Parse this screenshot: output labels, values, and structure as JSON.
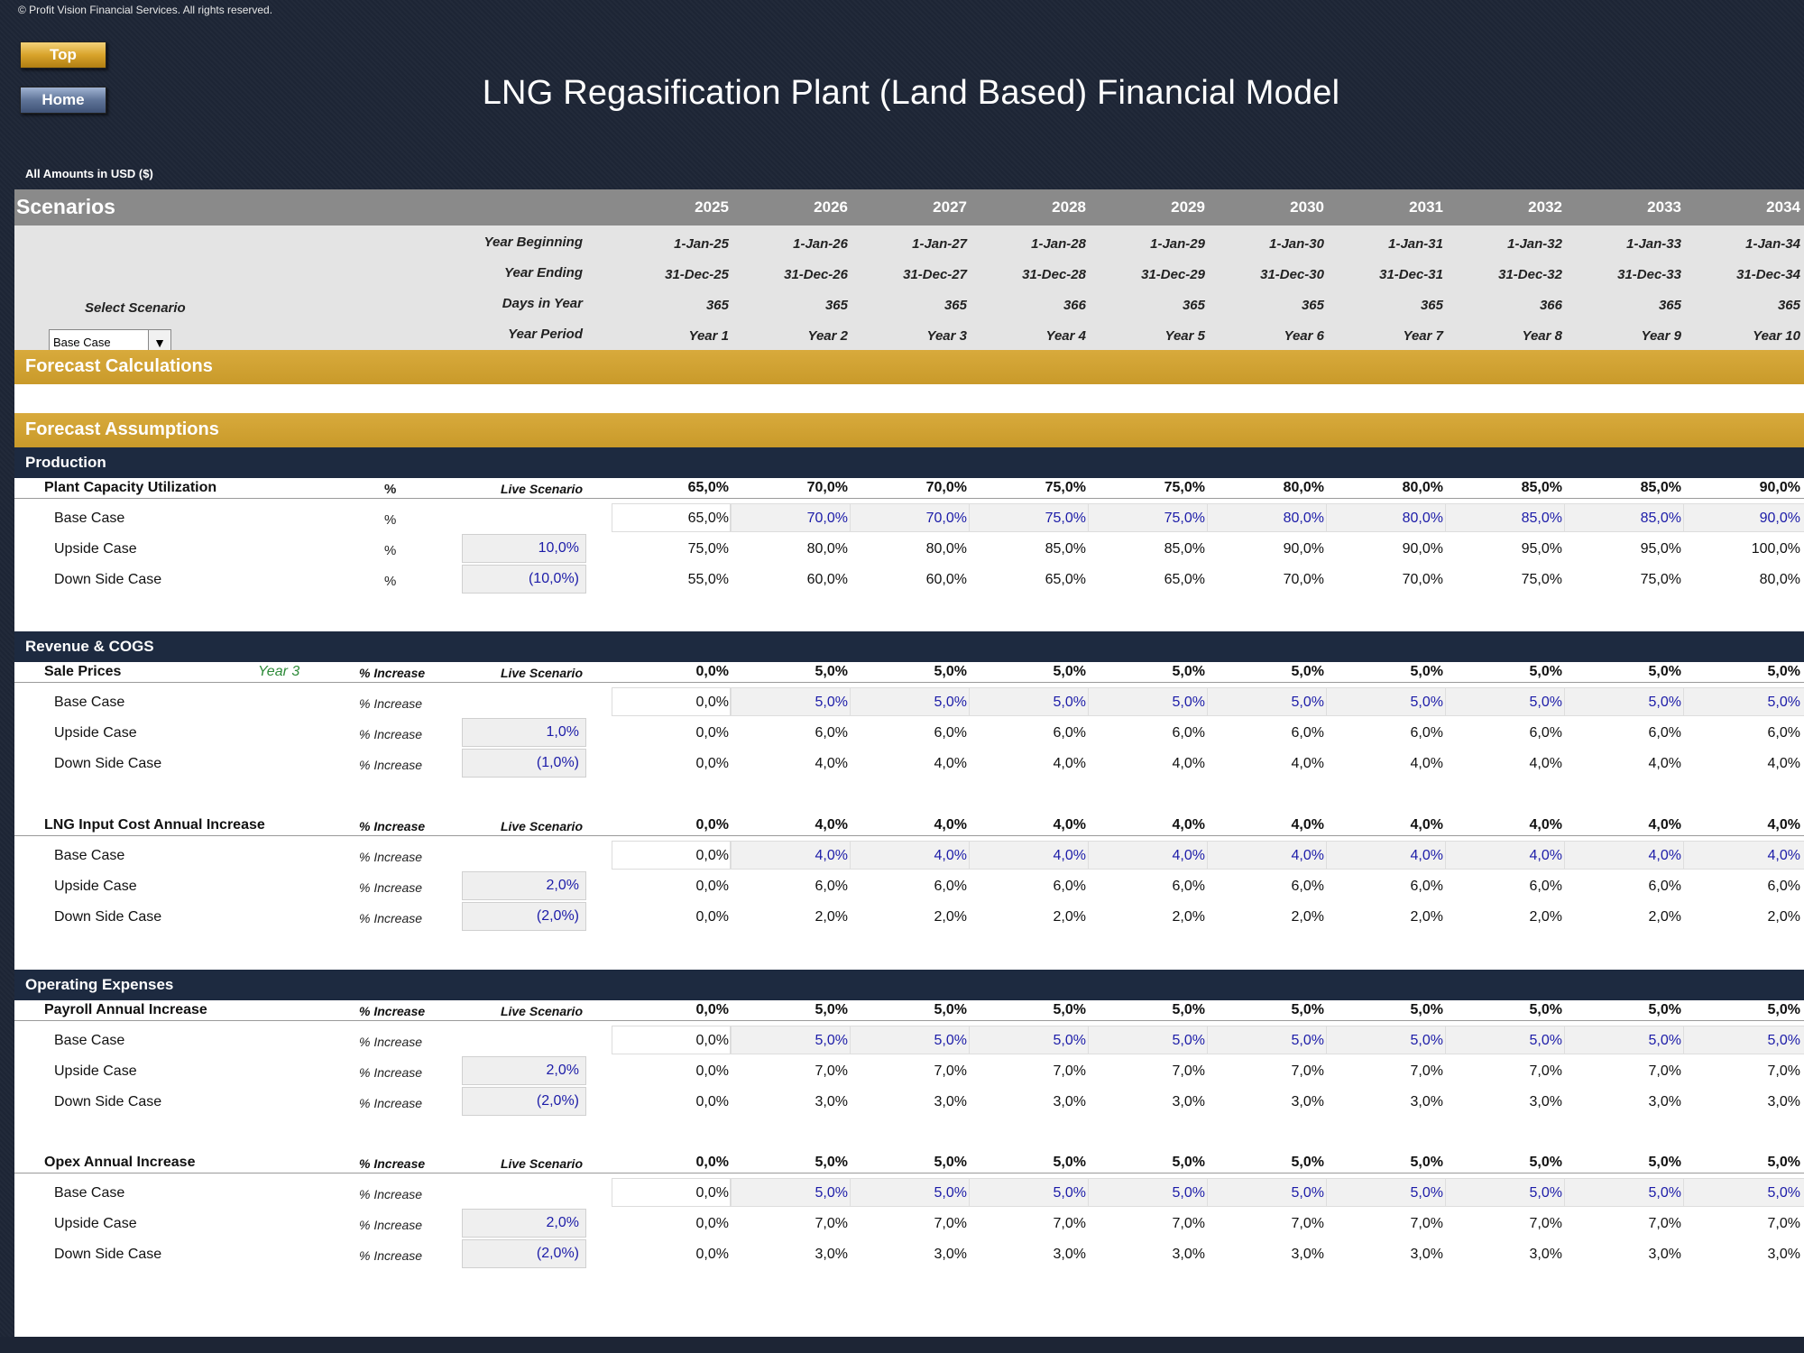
{
  "copyright": "© Profit Vision Financial Services. All rights reserved.",
  "buttons": {
    "top": "Top",
    "home": "Home"
  },
  "title": "LNG Regasification Plant (Land Based) Financial Model",
  "amounts": "All Amounts in  USD ($)",
  "scenarios": {
    "title": "Scenarios",
    "years": [
      "2025",
      "2026",
      "2027",
      "2028",
      "2029",
      "2030",
      "2031",
      "2032",
      "2033",
      "2034"
    ],
    "labels": {
      "beginning": "Year Beginning",
      "ending": "Year Ending",
      "days": "Days in Year",
      "period": "Year Period"
    },
    "beginning": [
      "1-Jan-25",
      "1-Jan-26",
      "1-Jan-27",
      "1-Jan-28",
      "1-Jan-29",
      "1-Jan-30",
      "1-Jan-31",
      "1-Jan-32",
      "1-Jan-33",
      "1-Jan-34"
    ],
    "ending": [
      "31-Dec-25",
      "31-Dec-26",
      "31-Dec-27",
      "31-Dec-28",
      "31-Dec-29",
      "31-Dec-30",
      "31-Dec-31",
      "31-Dec-32",
      "31-Dec-33",
      "31-Dec-34"
    ],
    "days": [
      "365",
      "365",
      "365",
      "366",
      "365",
      "365",
      "365",
      "366",
      "365",
      "365"
    ],
    "period": [
      "Year 1",
      "Year 2",
      "Year 3",
      "Year 4",
      "Year 5",
      "Year 6",
      "Year 7",
      "Year 8",
      "Year 9",
      "Year 10"
    ],
    "select_label": "Select Scenario",
    "selected": "Base Case",
    "dropdown_arrow": "▼"
  },
  "bands": {
    "forecast_calc": "Forecast Calculations",
    "forecast_assump": "Forecast Assumptions",
    "production": "Production",
    "revenue": "Revenue & COGS",
    "opex": "Operating Expenses"
  },
  "live_label": "Live Scenario",
  "case_names": [
    "Base Case",
    "Upside Case",
    "Down Side Case"
  ],
  "blocks": [
    {
      "name": "Plant Capacity Utilization",
      "unit": "%",
      "unit_sub": "%",
      "tag": "",
      "live": [
        "65,0%",
        "70,0%",
        "70,0%",
        "75,0%",
        "75,0%",
        "80,0%",
        "80,0%",
        "85,0%",
        "85,0%",
        "90,0%"
      ],
      "base": [
        "65,0%",
        "70,0%",
        "70,0%",
        "75,0%",
        "75,0%",
        "80,0%",
        "80,0%",
        "85,0%",
        "85,0%",
        "90,0%"
      ],
      "up_input": "10,0%",
      "up": [
        "75,0%",
        "80,0%",
        "80,0%",
        "85,0%",
        "85,0%",
        "90,0%",
        "90,0%",
        "95,0%",
        "95,0%",
        "100,0%"
      ],
      "down_input": "(10,0%)",
      "down": [
        "55,0%",
        "60,0%",
        "60,0%",
        "65,0%",
        "65,0%",
        "70,0%",
        "70,0%",
        "75,0%",
        "75,0%",
        "80,0%"
      ]
    },
    {
      "name": "Sale Prices",
      "unit": "% Increase",
      "unit_sub": "% Increase",
      "tag": "Year 3",
      "live": [
        "0,0%",
        "5,0%",
        "5,0%",
        "5,0%",
        "5,0%",
        "5,0%",
        "5,0%",
        "5,0%",
        "5,0%",
        "5,0%"
      ],
      "base": [
        "0,0%",
        "5,0%",
        "5,0%",
        "5,0%",
        "5,0%",
        "5,0%",
        "5,0%",
        "5,0%",
        "5,0%",
        "5,0%"
      ],
      "up_input": "1,0%",
      "up": [
        "0,0%",
        "6,0%",
        "6,0%",
        "6,0%",
        "6,0%",
        "6,0%",
        "6,0%",
        "6,0%",
        "6,0%",
        "6,0%"
      ],
      "down_input": "(1,0%)",
      "down": [
        "0,0%",
        "4,0%",
        "4,0%",
        "4,0%",
        "4,0%",
        "4,0%",
        "4,0%",
        "4,0%",
        "4,0%",
        "4,0%"
      ]
    },
    {
      "name": "LNG Input Cost Annual Increase",
      "unit": "% Increase",
      "unit_sub": "% Increase",
      "tag": "",
      "live": [
        "0,0%",
        "4,0%",
        "4,0%",
        "4,0%",
        "4,0%",
        "4,0%",
        "4,0%",
        "4,0%",
        "4,0%",
        "4,0%"
      ],
      "base": [
        "0,0%",
        "4,0%",
        "4,0%",
        "4,0%",
        "4,0%",
        "4,0%",
        "4,0%",
        "4,0%",
        "4,0%",
        "4,0%"
      ],
      "up_input": "2,0%",
      "up": [
        "0,0%",
        "6,0%",
        "6,0%",
        "6,0%",
        "6,0%",
        "6,0%",
        "6,0%",
        "6,0%",
        "6,0%",
        "6,0%"
      ],
      "down_input": "(2,0%)",
      "down": [
        "0,0%",
        "2,0%",
        "2,0%",
        "2,0%",
        "2,0%",
        "2,0%",
        "2,0%",
        "2,0%",
        "2,0%",
        "2,0%"
      ]
    },
    {
      "name": "Payroll Annual Increase",
      "unit": "% Increase",
      "unit_sub": "% Increase",
      "tag": "",
      "live": [
        "0,0%",
        "5,0%",
        "5,0%",
        "5,0%",
        "5,0%",
        "5,0%",
        "5,0%",
        "5,0%",
        "5,0%",
        "5,0%"
      ],
      "base": [
        "0,0%",
        "5,0%",
        "5,0%",
        "5,0%",
        "5,0%",
        "5,0%",
        "5,0%",
        "5,0%",
        "5,0%",
        "5,0%"
      ],
      "up_input": "2,0%",
      "up": [
        "0,0%",
        "7,0%",
        "7,0%",
        "7,0%",
        "7,0%",
        "7,0%",
        "7,0%",
        "7,0%",
        "7,0%",
        "7,0%"
      ],
      "down_input": "(2,0%)",
      "down": [
        "0,0%",
        "3,0%",
        "3,0%",
        "3,0%",
        "3,0%",
        "3,0%",
        "3,0%",
        "3,0%",
        "3,0%",
        "3,0%"
      ]
    },
    {
      "name": "Opex Annual Increase",
      "unit": "% Increase",
      "unit_sub": "% Increase",
      "tag": "",
      "live": [
        "0,0%",
        "5,0%",
        "5,0%",
        "5,0%",
        "5,0%",
        "5,0%",
        "5,0%",
        "5,0%",
        "5,0%",
        "5,0%"
      ],
      "base": [
        "0,0%",
        "5,0%",
        "5,0%",
        "5,0%",
        "5,0%",
        "5,0%",
        "5,0%",
        "5,0%",
        "5,0%",
        "5,0%"
      ],
      "up_input": "2,0%",
      "up": [
        "0,0%",
        "7,0%",
        "7,0%",
        "7,0%",
        "7,0%",
        "7,0%",
        "7,0%",
        "7,0%",
        "7,0%",
        "7,0%"
      ],
      "down_input": "(2,0%)",
      "down": [
        "0,0%",
        "3,0%",
        "3,0%",
        "3,0%",
        "3,0%",
        "3,0%",
        "3,0%",
        "3,0%",
        "3,0%",
        "3,0%"
      ]
    }
  ]
}
